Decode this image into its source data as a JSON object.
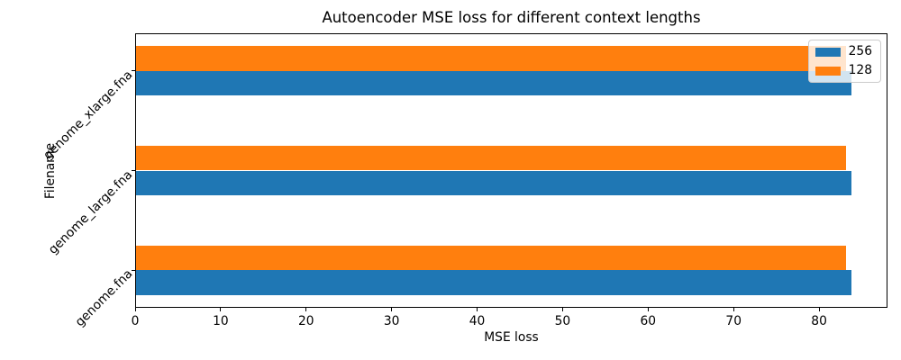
{
  "chart_data": {
    "type": "bar",
    "orientation": "horizontal",
    "title": "Autoencoder MSE loss for different context lengths",
    "xlabel": "MSE loss",
    "ylabel": "Filename",
    "categories_order": "bottom-to-top",
    "categories": [
      "genome.fna",
      "genome_large.fna",
      "genome_xlarge.fna"
    ],
    "series": [
      {
        "name": "256",
        "color": "#1f77b4",
        "values": [
          83.8,
          83.8,
          83.8
        ]
      },
      {
        "name": "128",
        "color": "#ff7f0e",
        "values": [
          83.1,
          83.1,
          83.1
        ]
      }
    ],
    "xlim": [
      0,
      88
    ],
    "xticks": [
      0,
      10,
      20,
      30,
      40,
      50,
      60,
      70,
      80
    ],
    "grid": false,
    "legend": {
      "position": "upper right",
      "entries": [
        "256",
        "128"
      ]
    },
    "colors": {
      "background": "#ffffff",
      "spine": "#000000",
      "text": "#000000",
      "legend_border": "#cccccc"
    }
  }
}
